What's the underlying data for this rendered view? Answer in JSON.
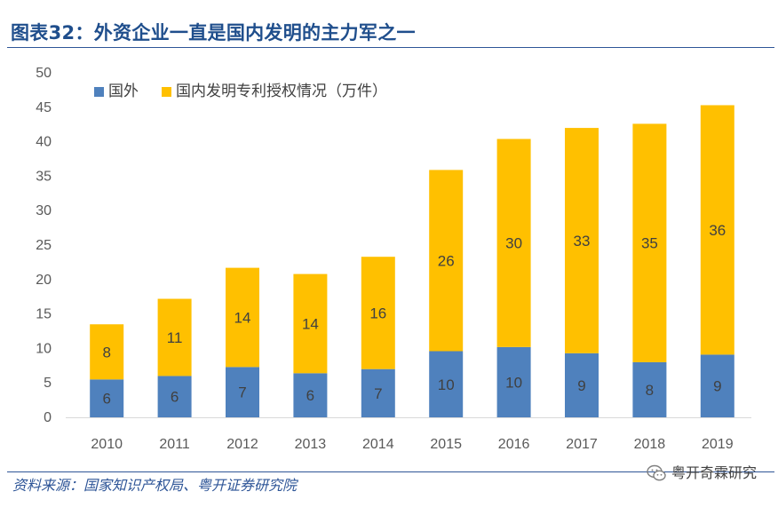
{
  "title": "图表32：外资企业一直是国内发明的主力军之一",
  "source": "资料来源：国家知识产权局、粤开证券研究院",
  "brand": {
    "name": "粤开奇霖研究",
    "icon": "wechat-icon"
  },
  "colors": {
    "title": "#1f4e8c",
    "foreign": "#4f81bd",
    "domestic": "#ffc000",
    "rule": "#2e5597"
  },
  "chart_data": {
    "type": "bar",
    "stacked": true,
    "categories": [
      "2010",
      "2011",
      "2012",
      "2013",
      "2014",
      "2015",
      "2016",
      "2017",
      "2018",
      "2019"
    ],
    "series": [
      {
        "name": "国外",
        "values": [
          5.5,
          6.0,
          7.3,
          6.4,
          7.0,
          9.6,
          10.2,
          9.3,
          8.0,
          9.1
        ],
        "labels": [
          "6",
          "6",
          "7",
          "6",
          "7",
          "10",
          "10",
          "9",
          "8",
          "9"
        ],
        "color": "#4f81bd"
      },
      {
        "name": "国内发明专利授权情况（万件）",
        "values": [
          8.0,
          11.2,
          14.4,
          14.4,
          16.3,
          26.3,
          30.2,
          32.7,
          34.6,
          36.2
        ],
        "labels": [
          "8",
          "11",
          "14",
          "14",
          "16",
          "26",
          "30",
          "33",
          "35",
          "36"
        ],
        "color": "#ffc000"
      }
    ],
    "ylim": [
      0,
      50
    ],
    "yticks": [
      "0",
      "5",
      "10",
      "15",
      "20",
      "25",
      "30",
      "35",
      "40",
      "45",
      "50"
    ],
    "legend_position": "top-left",
    "grid": false
  }
}
